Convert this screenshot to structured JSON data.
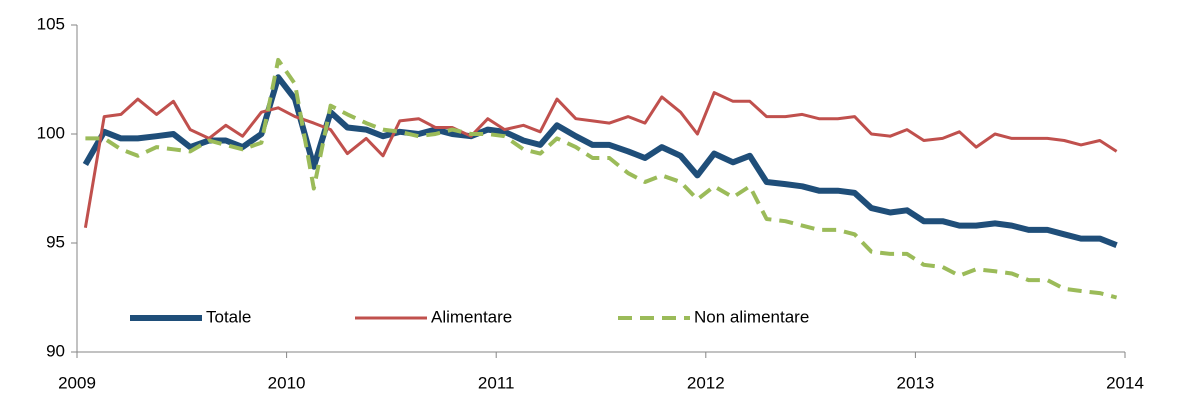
{
  "chart_data": {
    "type": "line",
    "x": [
      2009.04,
      2009.13,
      2009.21,
      2009.29,
      2009.38,
      2009.46,
      2009.54,
      2009.63,
      2009.71,
      2009.79,
      2009.88,
      2009.96,
      2010.04,
      2010.13,
      2010.21,
      2010.29,
      2010.38,
      2010.46,
      2010.54,
      2010.63,
      2010.71,
      2010.79,
      2010.88,
      2010.96,
      2011.04,
      2011.13,
      2011.21,
      2011.29,
      2011.38,
      2011.46,
      2011.54,
      2011.63,
      2011.71,
      2011.79,
      2011.88,
      2011.96,
      2012.04,
      2012.13,
      2012.21,
      2012.29,
      2012.38,
      2012.46,
      2012.54,
      2012.63,
      2012.71,
      2012.79,
      2012.88,
      2012.96,
      2013.04,
      2013.13,
      2013.21,
      2013.29,
      2013.38,
      2013.46,
      2013.54,
      2013.63,
      2013.71,
      2013.79,
      2013.88,
      2013.96
    ],
    "series": [
      {
        "name": "Totale",
        "color": "#1f4e79",
        "line_style": "solid",
        "values": [
          98.6,
          100.1,
          99.8,
          99.8,
          99.9,
          100.0,
          99.4,
          99.7,
          99.7,
          99.4,
          100.0,
          102.6,
          101.6,
          98.5,
          101.0,
          100.3,
          100.2,
          99.9,
          100.1,
          100.0,
          100.2,
          100.0,
          99.9,
          100.2,
          100.1,
          99.7,
          99.5,
          100.4,
          99.9,
          99.5,
          99.5,
          99.2,
          98.9,
          99.4,
          99.0,
          98.1,
          99.1,
          98.7,
          99.0,
          97.8,
          97.7,
          97.6,
          97.4,
          97.4,
          97.3,
          96.6,
          96.4,
          96.5,
          96.0,
          96.0,
          95.8,
          95.8,
          95.9,
          95.8,
          95.6,
          95.6,
          95.4,
          95.2,
          95.2,
          94.9
        ]
      },
      {
        "name": "Alimentare",
        "color": "#c0504d",
        "line_style": "solid",
        "values": [
          95.7,
          100.8,
          100.9,
          101.6,
          100.9,
          101.5,
          100.2,
          99.8,
          100.4,
          99.9,
          101.0,
          101.2,
          100.8,
          100.5,
          100.2,
          99.1,
          99.8,
          99.0,
          100.6,
          100.7,
          100.3,
          100.3,
          99.9,
          100.7,
          100.2,
          100.4,
          100.1,
          101.6,
          100.7,
          100.6,
          100.5,
          100.8,
          100.5,
          101.7,
          101.0,
          100.0,
          101.9,
          101.5,
          101.5,
          100.8,
          100.8,
          100.9,
          100.7,
          100.7,
          100.8,
          100.0,
          99.9,
          100.2,
          99.7,
          99.8,
          100.1,
          99.4,
          100.0,
          99.8,
          99.8,
          99.8,
          99.7,
          99.5,
          99.7,
          99.2
        ]
      },
      {
        "name": "Non alimentare",
        "color": "#9bbb59",
        "line_style": "dashed",
        "values": [
          99.8,
          99.8,
          99.3,
          99.0,
          99.4,
          99.3,
          99.2,
          99.7,
          99.5,
          99.3,
          99.6,
          103.4,
          102.3,
          97.5,
          101.3,
          100.9,
          100.5,
          100.2,
          100.1,
          99.9,
          100.0,
          100.2,
          100.0,
          100.0,
          99.9,
          99.3,
          99.1,
          99.8,
          99.4,
          98.9,
          98.9,
          98.2,
          97.8,
          98.1,
          97.8,
          97.0,
          97.6,
          97.1,
          97.6,
          96.1,
          96.0,
          95.8,
          95.6,
          95.6,
          95.4,
          94.6,
          94.5,
          94.5,
          94.0,
          93.9,
          93.5,
          93.8,
          93.7,
          93.6,
          93.3,
          93.3,
          92.9,
          92.8,
          92.7,
          92.5
        ]
      }
    ],
    "xlim": [
      2009,
      2014
    ],
    "xticks": [
      2009,
      2010,
      2011,
      2012,
      2013,
      2014
    ],
    "ylim": [
      90,
      105
    ],
    "yticks": [
      90,
      95,
      100,
      105
    ],
    "grid": false,
    "legend": "lower left"
  }
}
